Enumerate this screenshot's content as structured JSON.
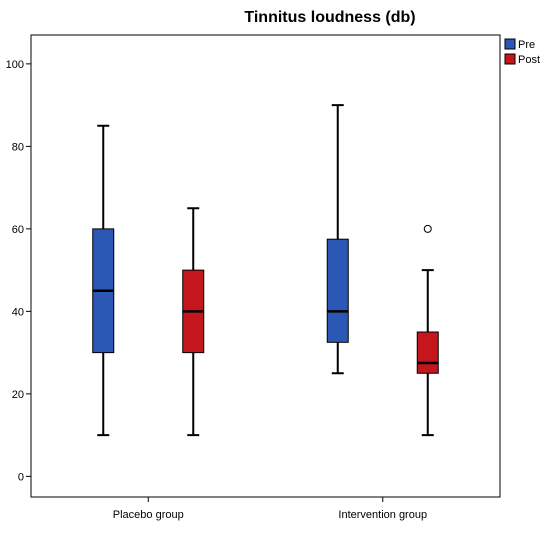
{
  "chart_data": {
    "type": "boxplot",
    "title": "Tinnitus loudness (db)",
    "xlabel": "",
    "ylabel": "",
    "ylim": [
      -5,
      107
    ],
    "yticks": [
      0,
      20,
      40,
      60,
      80,
      100
    ],
    "grid": false,
    "legend_position": "top-right",
    "categories": [
      "Placebo group",
      "Intervention group"
    ],
    "series": [
      {
        "name": "Pre",
        "color": "#2b58b4",
        "boxes": [
          {
            "min": 10,
            "q1": 30,
            "median": 45,
            "q3": 60,
            "max": 85,
            "outliers": []
          },
          {
            "min": 25,
            "q1": 32.5,
            "median": 40,
            "q3": 57.5,
            "max": 90,
            "outliers": []
          }
        ]
      },
      {
        "name": "Post",
        "color": "#c4161c",
        "boxes": [
          {
            "min": 10,
            "q1": 30,
            "median": 40,
            "q3": 50,
            "max": 65,
            "outliers": []
          },
          {
            "min": 10,
            "q1": 25,
            "median": 27.5,
            "q3": 35,
            "max": 50,
            "outliers": [
              60
            ]
          }
        ]
      }
    ]
  }
}
